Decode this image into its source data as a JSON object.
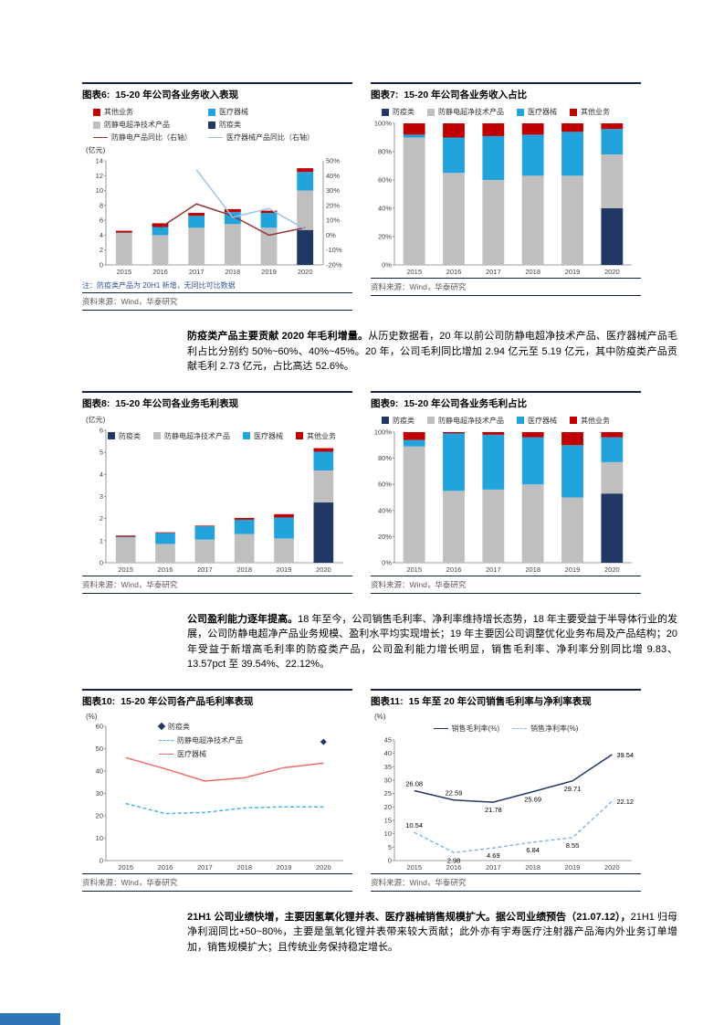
{
  "page": {
    "footer_accent_color": "#2e75b6"
  },
  "colors": {
    "navy": "#1f3864",
    "gray": "#bfbfbf",
    "blue": "#23a3dc",
    "red": "#c00000",
    "darkred_line": "#943634",
    "lightblue_line": "#9dc3e6",
    "coral_line": "#ee6b6e",
    "cyan_dash": "#45b5e8",
    "navy_line": "#1f3864",
    "steel_dash": "#85b8e2"
  },
  "paragraphs": [
    {
      "bold": "防疫类产品主要贡献 2020 年毛利增量。",
      "text": "从历史数据看，20 年以前公司防静电超净技术产品、医疗器械产品毛利占比分别约 50%~60%、40%~45%。20 年，公司毛利同比增加 2.94 亿元至 5.19 亿元，其中防疫类产品贡献毛利 2.73 亿元，占比高达 52.6%。"
    },
    {
      "bold": "公司盈利能力逐年提高。",
      "text": "18 年至今，公司销售毛利率、净利率维持增长态势，18 年主要受益于半导体行业的发展，公司防静电超净产品业务规模、盈利水平均实现增长；19 年主要因公司调整优化业务布局及产品结构；20 年受益于新增高毛利率的防疫类产品，公司盈利能力增长明显，销售毛利率、净利率分别同比增 9.83、13.57pct 至 39.54%、22.12%。"
    },
    {
      "bold": "21H1 公司业绩快增，主要因氢氧化锂并表、医疗器械销售规模扩大。据公司业绩预告（21.07.12），",
      "text": "21H1 归母净利润同比+50~80%，主要是氢氧化锂并表带来较大贡献；此外亦有宇寿医疗注射器产品海内外业务订单增加，销售规模扩大；且传统业务保持稳定增长。"
    }
  ],
  "charts": [
    {
      "id": "图表6:",
      "title": "15-20 年公司各业务收入表现",
      "note": "注：防疫类产品为 20H1 新增，无同比可比数据",
      "source": "资料来源：Wind，华泰研究",
      "chart_data": {
        "type": "combo-bar-line",
        "unit": "(亿元)",
        "categories": [
          "2015",
          "2016",
          "2017",
          "2018",
          "2019",
          "2020"
        ],
        "ylim": [
          0,
          14
        ],
        "yticks": [
          0,
          2,
          4,
          6,
          8,
          10,
          12,
          14
        ],
        "y2lim": [
          -20,
          50
        ],
        "y2ticks": [
          -20,
          -10,
          0,
          10,
          20,
          30,
          40,
          50
        ],
        "y2suffix": "%",
        "bar_frac": 0.45,
        "legend_order": [
          3,
          2,
          1,
          0,
          4,
          5
        ],
        "series": [
          {
            "name": "防疫类",
            "kind": "bar",
            "color": "navy",
            "values": [
              0,
              0,
              0,
              0,
              0,
              4.7
            ]
          },
          {
            "name": "防静电超净技术产品",
            "kind": "bar",
            "color": "gray",
            "values": [
              4.3,
              4.0,
              5.0,
              5.5,
              5.0,
              5.3
            ]
          },
          {
            "name": "医疗器械",
            "kind": "bar",
            "color": "blue",
            "values": [
              0.05,
              1.1,
              1.6,
              1.6,
              2.0,
              2.5
            ]
          },
          {
            "name": "其他业务",
            "kind": "bar",
            "color": "red",
            "values": [
              0.25,
              0.5,
              0.4,
              0.4,
              0.3,
              0.5
            ]
          },
          {
            "name": "防静电产品同比（右轴）",
            "kind": "line",
            "axis": "right",
            "color": "darkred_line",
            "values": [
              null,
              5,
              21,
              13,
              0,
              5
            ]
          },
          {
            "name": "医疗器械产品同比（右轴）",
            "kind": "line",
            "axis": "right",
            "color": "lightblue_line",
            "values": [
              null,
              null,
              44,
              12,
              18,
              4
            ]
          }
        ]
      }
    },
    {
      "id": "图表7:",
      "title": "15-20 年公司各业务收入占比",
      "source": "资料来源：Wind，华泰研究",
      "chart_data": {
        "type": "stacked-bar-100",
        "categories": [
          "2015",
          "2016",
          "2017",
          "2018",
          "2019",
          "2020"
        ],
        "ylim": [
          0,
          100
        ],
        "yticks": [
          0,
          20,
          40,
          60,
          80,
          100
        ],
        "ysuffix": "%",
        "bar_frac": 0.55,
        "legend_order": [
          0,
          1,
          2,
          3
        ],
        "series": [
          {
            "name": "防疫类",
            "kind": "bar",
            "color": "navy",
            "values": [
              0,
              0,
              0,
              0,
              0,
              40
            ]
          },
          {
            "name": "防静电超净技术产品",
            "kind": "bar",
            "color": "gray",
            "values": [
              90,
              65,
              60,
              63,
              63,
              38
            ]
          },
          {
            "name": "医疗器械",
            "kind": "bar",
            "color": "blue",
            "values": [
              2,
              25,
              31,
              29,
              31,
              18
            ]
          },
          {
            "name": "其他业务",
            "kind": "bar",
            "color": "red",
            "values": [
              8,
              10,
              9,
              8,
              6,
              4
            ]
          }
        ]
      }
    },
    {
      "id": "图表8:",
      "title": "15-20 年公司各业务毛利表现",
      "source": "资料来源：Wind，华泰研究",
      "chart_data": {
        "type": "stacked-bar",
        "unit": "(亿元)",
        "categories": [
          "2015",
          "2016",
          "2017",
          "2018",
          "2019",
          "2020"
        ],
        "ylim": [
          0,
          6
        ],
        "yticks": [
          0,
          1,
          2,
          3,
          4,
          5,
          6
        ],
        "bar_frac": 0.5,
        "legend_order": [
          0,
          1,
          2,
          3
        ],
        "series": [
          {
            "name": "防疫类",
            "kind": "bar",
            "color": "navy",
            "values": [
              0,
              0,
              0,
              0,
              0,
              2.73
            ]
          },
          {
            "name": "防静电超净技术产品",
            "kind": "bar",
            "color": "gray",
            "values": [
              1.15,
              0.85,
              1.05,
              1.3,
              1.1,
              1.45
            ]
          },
          {
            "name": "医疗器械",
            "kind": "bar",
            "color": "blue",
            "values": [
              0.03,
              0.5,
              0.6,
              0.65,
              0.95,
              0.85
            ]
          },
          {
            "name": "其他业务",
            "kind": "bar",
            "color": "red",
            "values": [
              0.05,
              0.03,
              0.03,
              0.08,
              0.15,
              0.16
            ]
          }
        ]
      }
    },
    {
      "id": "图表9:",
      "title": "15-20 年公司各业务毛利占比",
      "source": "资料来源：Wind，华泰研究",
      "chart_data": {
        "type": "stacked-bar-100",
        "categories": [
          "2015",
          "2016",
          "2017",
          "2018",
          "2019",
          "2020"
        ],
        "ylim": [
          0,
          100
        ],
        "yticks": [
          0,
          20,
          40,
          60,
          80,
          100
        ],
        "ysuffix": "%",
        "bar_frac": 0.55,
        "legend_order": [
          0,
          1,
          2,
          3
        ],
        "series": [
          {
            "name": "防疫类",
            "kind": "bar",
            "color": "navy",
            "values": [
              0,
              0,
              0,
              0,
              0,
              53
            ]
          },
          {
            "name": "防静电超净技术产品",
            "kind": "bar",
            "color": "gray",
            "values": [
              89,
              55,
              56,
              60,
              50,
              24
            ]
          },
          {
            "name": "医疗器械",
            "kind": "bar",
            "color": "blue",
            "values": [
              5,
              44,
              42,
              36,
              40,
              19
            ]
          },
          {
            "name": "其他业务",
            "kind": "bar",
            "color": "red",
            "values": [
              6,
              1,
              2,
              4,
              10,
              4
            ]
          }
        ]
      }
    },
    {
      "id": "图表10:",
      "title": "15-20 年公司各产品毛利率表现",
      "source": "资料来源：Wind，华泰研究",
      "chart_data": {
        "type": "line",
        "unit": "(%)",
        "categories": [
          "2015",
          "2016",
          "2017",
          "2018",
          "2019",
          "2020"
        ],
        "ylim": [
          0,
          60
        ],
        "yticks": [
          0,
          10,
          20,
          30,
          40,
          50,
          60
        ],
        "legend_order": [
          0,
          1,
          2
        ],
        "series": [
          {
            "name": "防疫类",
            "kind": "point",
            "marker": "diamond",
            "color": "navy",
            "values": [
              null,
              null,
              null,
              null,
              null,
              53
            ]
          },
          {
            "name": "防静电超净技术产品",
            "kind": "line",
            "dash": true,
            "color": "cyan_dash",
            "values": [
              25.5,
              21,
              21.5,
              23.5,
              24,
              24
            ]
          },
          {
            "name": "医疗器械",
            "kind": "line",
            "color": "coral_line",
            "values": [
              46,
              41,
              35.5,
              37,
              41.5,
              43.5
            ]
          }
        ]
      }
    },
    {
      "id": "图表11:",
      "title": "15 年至 20 年公司销售毛利率与净利率表现",
      "source": "资料来源：Wind，华泰研究",
      "chart_data": {
        "type": "line",
        "unit": "(%)",
        "categories": [
          "2015",
          "2016",
          "2017",
          "2018",
          "2019",
          "2020"
        ],
        "ylim": [
          0,
          45
        ],
        "yticks": [
          0,
          5,
          10,
          15,
          20,
          25,
          30,
          35,
          40,
          45
        ],
        "legend_order": [
          0,
          1
        ],
        "series": [
          {
            "name": "销售毛利率(%)",
            "kind": "line",
            "color": "navy_line",
            "labels": true,
            "label_positions": [
              "above",
              "above",
              "below",
              "below",
              "below",
              "right"
            ],
            "values": [
              26.08,
              22.59,
              21.78,
              25.69,
              29.71,
              39.54
            ]
          },
          {
            "name": "销售净利率(%)",
            "kind": "line",
            "dash": true,
            "color": "steel_dash",
            "labels": true,
            "label_positions": [
              "above",
              "below",
              "below",
              "below",
              "below",
              "right"
            ],
            "values": [
              10.54,
              2.98,
              4.69,
              6.84,
              8.55,
              22.12
            ]
          }
        ]
      }
    }
  ]
}
